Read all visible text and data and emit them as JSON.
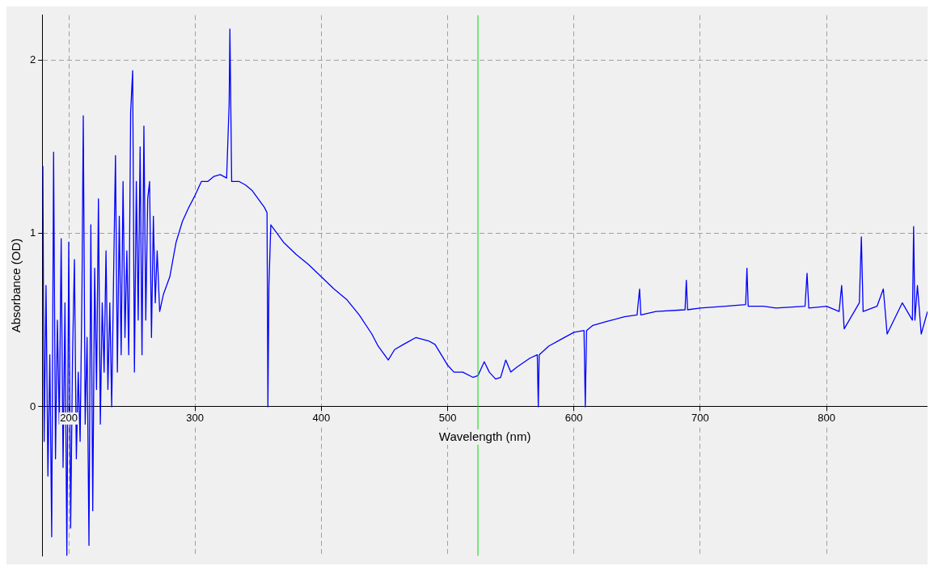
{
  "chart_data": {
    "type": "line",
    "xlabel": "Wavelength (nm)",
    "ylabel": "Absorbance (OD)",
    "xlim": [
      179,
      880
    ],
    "ylim": [
      -0.86,
      2.26
    ],
    "xticks": [
      200,
      300,
      400,
      500,
      600,
      700,
      800
    ],
    "yticks": [
      0,
      1,
      2
    ],
    "grid": true,
    "marker": "none",
    "line_style": "solid",
    "ref_lines": [
      {
        "axis": "x",
        "value": 524,
        "color": "#00dd00"
      }
    ],
    "series": [
      {
        "color": "#0000ff",
        "x": [
          179.5,
          180.5,
          182,
          183.5,
          185,
          186.5,
          188,
          189.5,
          191,
          192.5,
          194,
          195.5,
          197,
          198.5,
          200,
          201.5,
          203,
          204.5,
          206,
          207.5,
          209,
          210.5,
          211.5,
          213,
          214.5,
          216,
          217.5,
          219,
          220.5,
          222,
          223.5,
          225,
          226.5,
          228,
          229.5,
          231,
          232.5,
          234,
          235.5,
          237,
          238.5,
          240,
          241.5,
          243,
          244.5,
          246,
          247.5,
          249,
          250.6,
          252,
          253.5,
          255,
          256.5,
          258,
          259.5,
          261,
          262.5,
          264,
          265.5,
          267,
          268.5,
          270,
          272,
          275,
          280,
          285,
          290,
          295,
          300,
          305,
          310,
          315,
          320,
          325,
          327,
          327.6,
          329,
          335,
          340,
          345,
          350,
          355,
          357,
          357.7,
          358.5,
          360,
          365,
          370,
          380,
          390,
          400,
          410,
          420,
          430,
          440,
          445,
          450,
          453,
          458,
          465,
          475,
          485,
          490,
          495,
          500,
          505,
          512,
          520,
          524,
          529,
          533,
          538,
          542,
          546,
          550,
          555,
          565,
          571,
          571.8,
          572.5,
          580,
          590,
          600,
          608,
          609,
          610,
          615,
          625,
          640,
          650,
          652,
          653,
          665,
          688,
          689,
          690,
          700,
          720,
          736,
          737,
          738,
          750,
          760,
          783,
          784.6,
          786,
          800,
          810,
          812,
          814,
          826,
          827.6,
          829,
          840,
          845,
          848,
          860,
          868,
          869,
          870,
          872,
          875,
          880
        ],
        "values": [
          1.39,
          -0.2,
          0.7,
          -0.4,
          0.3,
          -0.75,
          1.47,
          -0.3,
          0.5,
          -0.1,
          0.97,
          -0.35,
          0.6,
          -0.86,
          0.95,
          -0.7,
          0.3,
          0.85,
          -0.3,
          0.2,
          -0.2,
          0.7,
          1.68,
          -0.1,
          0.4,
          -0.8,
          1.05,
          -0.6,
          0.8,
          0.1,
          1.2,
          -0.1,
          0.6,
          0.2,
          0.9,
          0.1,
          0.6,
          0.0,
          0.75,
          1.45,
          0.2,
          1.1,
          0.3,
          1.3,
          0.4,
          0.9,
          0.3,
          1.7,
          1.94,
          0.2,
          1.3,
          0.5,
          1.5,
          0.3,
          1.62,
          0.5,
          1.2,
          1.3,
          0.4,
          1.1,
          0.6,
          0.9,
          0.55,
          0.65,
          0.75,
          0.95,
          1.07,
          1.15,
          1.22,
          1.3,
          1.3,
          1.33,
          1.34,
          1.32,
          1.75,
          2.18,
          1.3,
          1.3,
          1.28,
          1.25,
          1.2,
          1.15,
          1.12,
          0.0,
          0.7,
          1.05,
          1.0,
          0.95,
          0.88,
          0.82,
          0.75,
          0.68,
          0.62,
          0.53,
          0.42,
          0.35,
          0.3,
          0.27,
          0.33,
          0.36,
          0.4,
          0.38,
          0.36,
          0.3,
          0.24,
          0.2,
          0.2,
          0.17,
          0.18,
          0.26,
          0.2,
          0.16,
          0.17,
          0.27,
          0.2,
          0.23,
          0.28,
          0.3,
          0.0,
          0.3,
          0.35,
          0.39,
          0.43,
          0.44,
          0.0,
          0.44,
          0.47,
          0.49,
          0.52,
          0.53,
          0.68,
          0.53,
          0.55,
          0.56,
          0.73,
          0.56,
          0.57,
          0.58,
          0.59,
          0.8,
          0.58,
          0.58,
          0.57,
          0.58,
          0.77,
          0.57,
          0.58,
          0.55,
          0.7,
          0.45,
          0.6,
          0.98,
          0.55,
          0.58,
          0.68,
          0.42,
          0.6,
          0.5,
          1.04,
          0.5,
          0.7,
          0.42,
          0.55
        ]
      }
    ]
  }
}
